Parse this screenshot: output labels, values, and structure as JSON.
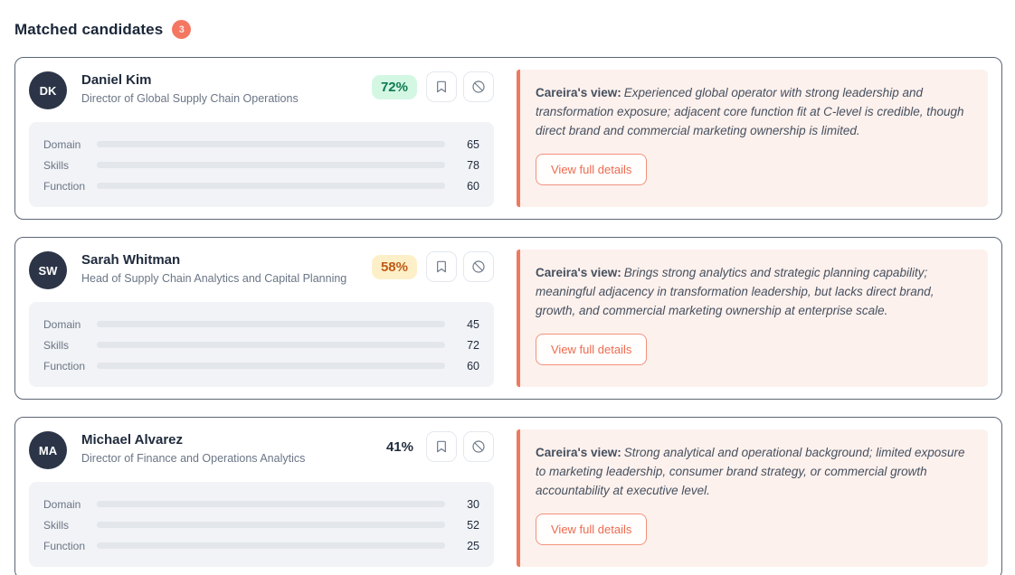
{
  "header": {
    "title": "Matched candidates",
    "count": "3"
  },
  "ui": {
    "view_label": "Careira's view:",
    "view_details": "View full details",
    "icons": {
      "save": "bookmark-icon",
      "dismiss": "block-icon"
    }
  },
  "colors": {
    "count_badge": "#f47761",
    "card_border": "#5b6574",
    "avatar_bg": "#2c3547",
    "match_green_bg": "#d4f7e4",
    "match_green_text": "#0e7a52",
    "match_amber_bg": "#fdf0c9",
    "match_amber_text": "#bf5b16",
    "bar_domain": "#1d87ee",
    "bar_skills": "#10b981",
    "bar_function": "#8b5cf6",
    "view_panel_bg": "#fdf1ed",
    "view_panel_accent": "#f0785e",
    "details_btn_text": "#ef6a4e"
  },
  "candidates": [
    {
      "initials": "DK",
      "name": "Daniel Kim",
      "title": "Director of Global Supply Chain Operations",
      "match": "72%",
      "match_tone": "green",
      "metrics": [
        {
          "label": "Domain",
          "value": 65
        },
        {
          "label": "Skills",
          "value": 78
        },
        {
          "label": "Function",
          "value": 60
        }
      ],
      "view_text": "Experienced global operator with strong leadership and transformation exposure; adjacent core function fit at C-level is credible, though direct brand and commercial marketing ownership is limited."
    },
    {
      "initials": "SW",
      "name": "Sarah Whitman",
      "title": "Head of Supply Chain Analytics and Capital Planning",
      "match": "58%",
      "match_tone": "amber",
      "metrics": [
        {
          "label": "Domain",
          "value": 45
        },
        {
          "label": "Skills",
          "value": 72
        },
        {
          "label": "Function",
          "value": 60
        }
      ],
      "view_text": "Brings strong analytics and strategic planning capability; meaningful adjacency in transformation leadership, but lacks direct brand, growth, and commercial marketing ownership at enterprise scale."
    },
    {
      "initials": "MA",
      "name": "Michael Alvarez",
      "title": "Director of Finance and Operations Analytics",
      "match": "41%",
      "match_tone": "plain",
      "metrics": [
        {
          "label": "Domain",
          "value": 30
        },
        {
          "label": "Skills",
          "value": 52
        },
        {
          "label": "Function",
          "value": 25
        }
      ],
      "view_text": "Strong analytical and operational background; limited exposure to marketing leadership, consumer brand strategy, or commercial growth accountability at executive level."
    }
  ]
}
